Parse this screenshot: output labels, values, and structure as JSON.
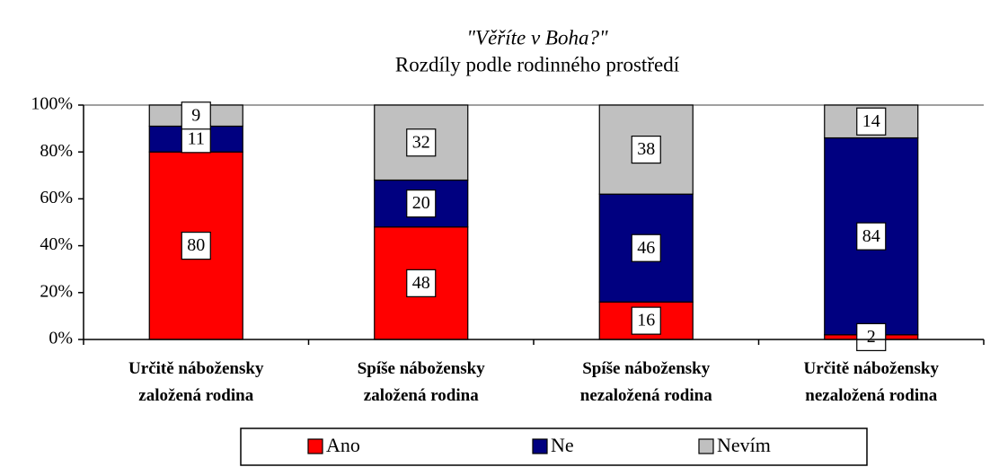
{
  "chart_data": {
    "type": "stacked_bar",
    "title": "\"Věříte v Boha?\"",
    "subtitle": "Rozdíly podle rodinného prostředí",
    "categories": [
      "Určitě nábožensky\nzaložená rodina",
      "Spíše nábožensky\nzaložená rodina",
      "Spíše nábožensky\nnezaložená rodina",
      "Určitě nábožensky\nnezaložená rodina"
    ],
    "series": [
      {
        "name": "Ano",
        "color": "#ff0000",
        "values": [
          80,
          48,
          16,
          2
        ]
      },
      {
        "name": "Ne",
        "color": "#000080",
        "values": [
          11,
          20,
          46,
          84
        ]
      },
      {
        "name": "Nevím",
        "color": "#c0c0c0",
        "values": [
          9,
          32,
          38,
          14
        ]
      }
    ],
    "ylim": [
      0,
      100
    ],
    "yticks": [
      {
        "value": 0,
        "label": "0%"
      },
      {
        "value": 20,
        "label": "20%"
      },
      {
        "value": 40,
        "label": "40%"
      },
      {
        "value": 60,
        "label": "60%"
      },
      {
        "value": 80,
        "label": "80%"
      },
      {
        "value": 100,
        "label": "100%"
      }
    ],
    "legend": "bottom"
  }
}
